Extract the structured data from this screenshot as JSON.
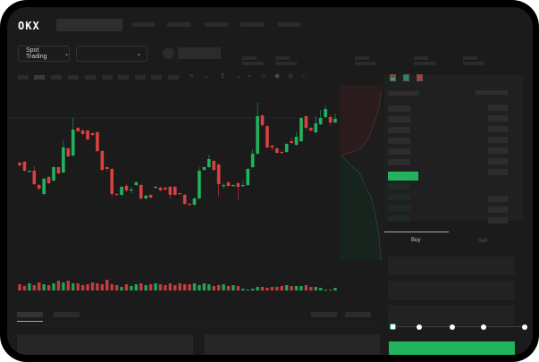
{
  "header": {
    "logo": "OKX"
  },
  "toolbar": {
    "market_selector": "Spot Trading"
  },
  "trade_panel": {
    "tabs": [
      {
        "label": "Buy",
        "active": true
      },
      {
        "label": "Sell",
        "active": false
      }
    ],
    "slider_value": 0
  },
  "colors": {
    "up": "#22b35e",
    "down": "#d9403f",
    "background": "#1b1b1b"
  },
  "chart_data": {
    "type": "candlestick",
    "ylim": [
      0,
      130
    ],
    "candles": [
      [
        58,
        55,
        59,
        54
      ],
      [
        59,
        49,
        60,
        48
      ],
      [
        48,
        49,
        49,
        47
      ],
      [
        49,
        34,
        54,
        33
      ],
      [
        33,
        29,
        34,
        27
      ],
      [
        23,
        40,
        41,
        22
      ],
      [
        42,
        35,
        43,
        34
      ],
      [
        38,
        53,
        54,
        37
      ],
      [
        53,
        46,
        54,
        45
      ],
      [
        47,
        75,
        83,
        46
      ],
      [
        74,
        65,
        75,
        64
      ],
      [
        66,
        95,
        108,
        65
      ],
      [
        97,
        93,
        98,
        92
      ],
      [
        94,
        90,
        96,
        89
      ],
      [
        94,
        84,
        95,
        83
      ],
      [
        91,
        89,
        92,
        88
      ],
      [
        92,
        71,
        93,
        70
      ],
      [
        71,
        50,
        72,
        49
      ],
      [
        53,
        51,
        54,
        48
      ],
      [
        51,
        23,
        52,
        20
      ],
      [
        23,
        22,
        24,
        21
      ],
      [
        22,
        31,
        32,
        21
      ],
      [
        32,
        27,
        34,
        25
      ],
      [
        27,
        28,
        31,
        24
      ],
      [
        33,
        36,
        37,
        32
      ],
      [
        33,
        18,
        34,
        16
      ],
      [
        18,
        21,
        22,
        17
      ],
      [
        22,
        19,
        23,
        18
      ],
      [
        30,
        31,
        32,
        29
      ],
      [
        30,
        27,
        31,
        26
      ],
      [
        30,
        28,
        31,
        27
      ],
      [
        31,
        22,
        32,
        18
      ],
      [
        31,
        22,
        32,
        21
      ],
      [
        24,
        23,
        24,
        22
      ],
      [
        22,
        12,
        23,
        11
      ],
      [
        12,
        11,
        13,
        10
      ],
      [
        11,
        18,
        19,
        10
      ],
      [
        18,
        49,
        53,
        17
      ],
      [
        50,
        53,
        54,
        49
      ],
      [
        53,
        62,
        67,
        52
      ],
      [
        60,
        50,
        61,
        49
      ],
      [
        56,
        34,
        57,
        20
      ],
      [
        32,
        33,
        35,
        29
      ],
      [
        36,
        32,
        37,
        31
      ],
      [
        32,
        33,
        34,
        31
      ],
      [
        35,
        31,
        36,
        16
      ],
      [
        32,
        33,
        38,
        31
      ],
      [
        33,
        51,
        52,
        32
      ],
      [
        53,
        68,
        73,
        52
      ],
      [
        68,
        110,
        125,
        67
      ],
      [
        111,
        100,
        112,
        98
      ],
      [
        99,
        75,
        100,
        74
      ],
      [
        77,
        75,
        78,
        72
      ],
      [
        74,
        69,
        75,
        68
      ],
      [
        70,
        69,
        71,
        68
      ],
      [
        70,
        79,
        80,
        69
      ],
      [
        82,
        80,
        86,
        79
      ],
      [
        78,
        87,
        92,
        77
      ],
      [
        82,
        108,
        109,
        81
      ],
      [
        110,
        97,
        111,
        95
      ],
      [
        97,
        94,
        98,
        93
      ],
      [
        92,
        102,
        110,
        91
      ],
      [
        101,
        108,
        117,
        100
      ],
      [
        109,
        118,
        122,
        108
      ],
      [
        109,
        103,
        111,
        99
      ],
      [
        103,
        107,
        113,
        102
      ]
    ],
    "volume": [
      7,
      5,
      8,
      6,
      9,
      7,
      6,
      8,
      11,
      9,
      11,
      8,
      8,
      6,
      7,
      9,
      8,
      7,
      12,
      7,
      6,
      4,
      7,
      5,
      7,
      8,
      6,
      7,
      8,
      7,
      6,
      8,
      6,
      8,
      7,
      7,
      8,
      6,
      8,
      7,
      5,
      6,
      7,
      5,
      6,
      5,
      2,
      1,
      2,
      4,
      4,
      3,
      4,
      4,
      5,
      6,
      5,
      5,
      5,
      6,
      4,
      4,
      3,
      1,
      1,
      3
    ]
  }
}
